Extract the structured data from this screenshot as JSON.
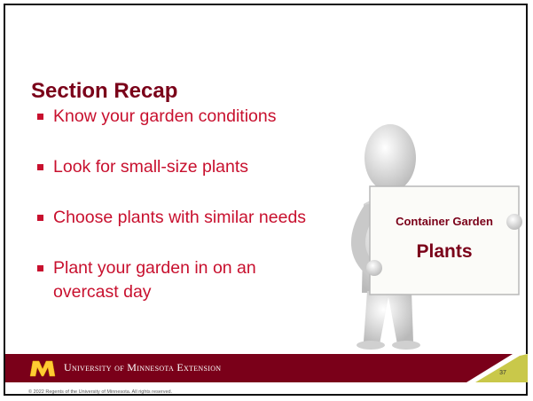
{
  "slide": {
    "title": "Section Recap",
    "bullets": [
      "Know your garden conditions",
      "Look for small-size plants",
      "Choose plants with similar needs",
      "Plant your garden in on an overcast day"
    ],
    "sign": {
      "line1": "Container Garden",
      "line2": "Plants"
    },
    "footer": {
      "organization": "University of Minnesota Extension",
      "page_number": "37",
      "copyright": "© 2022 Regents of the University of Minnesota. All rights reserved."
    }
  }
}
